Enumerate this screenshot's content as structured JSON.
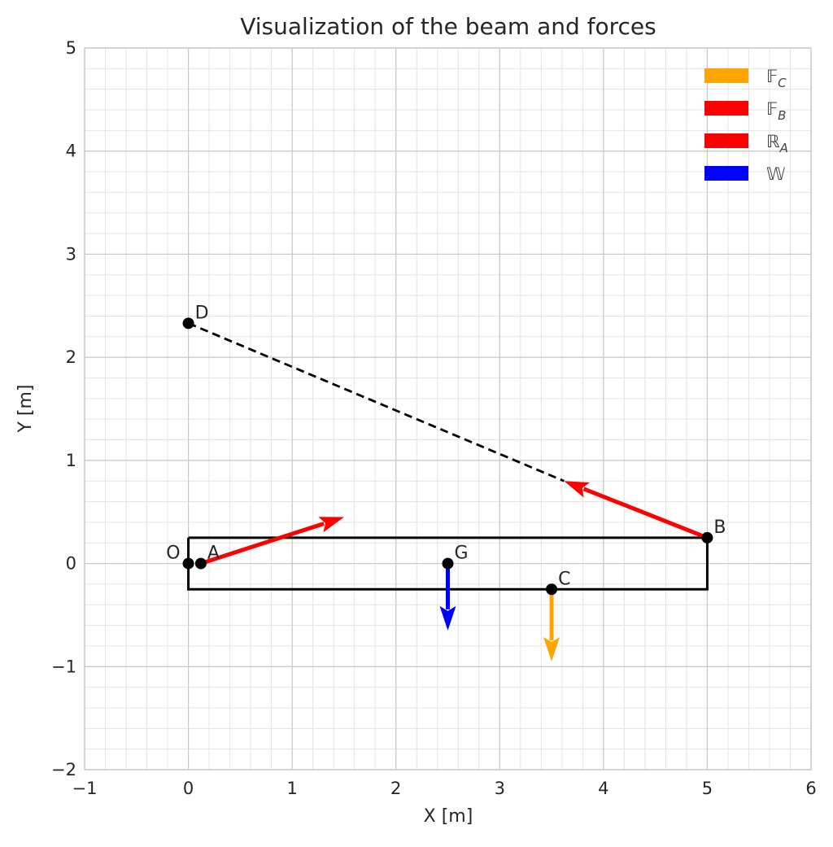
{
  "chart_data": {
    "type": "line",
    "title": "Visualization of the beam and forces",
    "xlabel": "X [m]",
    "ylabel": "Y [m]",
    "xlim": [
      -1,
      6
    ],
    "ylim": [
      -2,
      5
    ],
    "grid": true,
    "minor_grid": true,
    "legend_placement": "top-right",
    "x_ticks": [
      -1,
      0,
      1,
      2,
      3,
      4,
      5,
      6
    ],
    "x_tick_labels": [
      "−1",
      "0",
      "1",
      "2",
      "3",
      "4",
      "5",
      "6"
    ],
    "y_ticks": [
      -2,
      -1,
      0,
      1,
      2,
      3,
      4,
      5
    ],
    "y_tick_labels": [
      "−2",
      "−1",
      "0",
      "1",
      "2",
      "3",
      "4",
      "5"
    ],
    "beam_outline": [
      [
        0,
        0.25
      ],
      [
        5,
        0.25
      ],
      [
        5,
        -0.25
      ],
      [
        0,
        -0.25
      ],
      [
        0,
        0.25
      ]
    ],
    "cable": {
      "from": [
        0,
        2.33
      ],
      "to": [
        3.62,
        0.8
      ],
      "style": "dashed",
      "color": "#000000"
    },
    "points": [
      {
        "label": "O",
        "x": 0,
        "y": 0,
        "label_pos": "left"
      },
      {
        "label": "A",
        "x": 0.12,
        "y": 0,
        "label_pos": "right"
      },
      {
        "label": "G",
        "x": 2.5,
        "y": 0,
        "label_pos": "right"
      },
      {
        "label": "C",
        "x": 3.5,
        "y": -0.25,
        "label_pos": "right"
      },
      {
        "label": "B",
        "x": 5,
        "y": 0.25,
        "label_pos": "right"
      },
      {
        "label": "D",
        "x": 0,
        "y": 2.33,
        "label_pos": "right"
      }
    ],
    "forces": [
      {
        "name": "F_C",
        "legend": "𝔽",
        "sub": "C",
        "color": "#ffa500",
        "from": [
          3.5,
          -0.25
        ],
        "to": [
          3.5,
          -0.95
        ]
      },
      {
        "name": "F_B",
        "legend": "𝔽",
        "sub": "B",
        "color": "#ff0000",
        "from": [
          5,
          0.25
        ],
        "to": [
          3.62,
          0.8
        ]
      },
      {
        "name": "R_A",
        "legend": "ℝ",
        "sub": "A",
        "color": "#ff0000",
        "from": [
          0.12,
          0
        ],
        "to": [
          1.5,
          0.45
        ]
      },
      {
        "name": "W",
        "legend": "𝕎",
        "sub": "",
        "color": "#0000ff",
        "from": [
          2.5,
          0
        ],
        "to": [
          2.5,
          -0.65
        ]
      }
    ]
  }
}
